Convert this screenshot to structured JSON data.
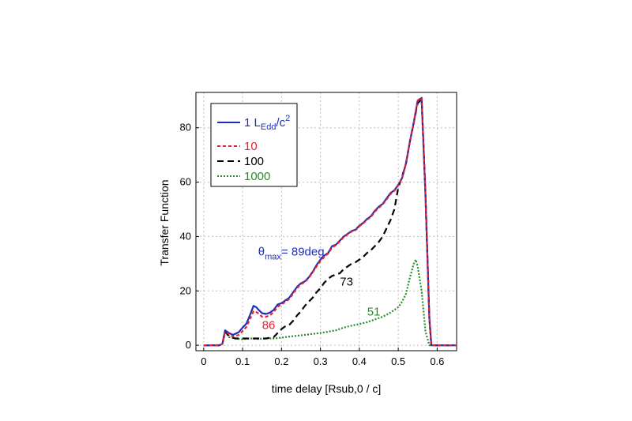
{
  "chart_data": {
    "type": "line",
    "xlabel": "time delay [Rsub,0 / c]",
    "ylabel": "Transfer Function",
    "xlim": [
      -0.02,
      0.65
    ],
    "ylim": [
      -2,
      93
    ],
    "xticks": [
      "0",
      "0.1",
      "0.2",
      "0.3",
      "0.4",
      "0.5",
      "0.6"
    ],
    "yticks": [
      "0",
      "20",
      "40",
      "60",
      "80"
    ],
    "grid": true,
    "legend_position": "top-left",
    "series": [
      {
        "name_main": "1 L",
        "name_sub": "Edd",
        "name_tail": "/c",
        "name_sup": "2",
        "color": "#1f2fb5",
        "dash": "solid",
        "x": [
          0,
          0.04,
          0.048,
          0.055,
          0.065,
          0.075,
          0.09,
          0.1,
          0.11,
          0.12,
          0.128,
          0.135,
          0.14,
          0.15,
          0.16,
          0.17,
          0.18,
          0.19,
          0.2,
          0.21,
          0.22,
          0.23,
          0.24,
          0.25,
          0.26,
          0.27,
          0.28,
          0.29,
          0.3,
          0.31,
          0.32,
          0.33,
          0.34,
          0.35,
          0.36,
          0.37,
          0.38,
          0.39,
          0.4,
          0.41,
          0.42,
          0.43,
          0.44,
          0.45,
          0.46,
          0.47,
          0.48,
          0.49,
          0.5,
          0.51,
          0.52,
          0.53,
          0.54,
          0.55,
          0.56,
          0.57,
          0.58,
          0.585,
          0.65
        ],
        "y": [
          0,
          0,
          0.5,
          5.5,
          4.5,
          3.8,
          4.8,
          6.5,
          8.0,
          11.5,
          14.5,
          14.0,
          13.2,
          11.8,
          11.5,
          12.0,
          13.0,
          15.0,
          15.5,
          16.5,
          17.5,
          19.5,
          21.5,
          22.8,
          23.5,
          25.0,
          27.0,
          29.5,
          31.5,
          33.0,
          34.0,
          36.5,
          37.0,
          38.5,
          40.0,
          41.0,
          42.0,
          42.5,
          44.0,
          45.0,
          46.5,
          47.5,
          49.5,
          51.0,
          52.0,
          54.0,
          56.0,
          57.0,
          59.0,
          61.5,
          67.0,
          75.0,
          82.0,
          90.0,
          91.0,
          55.0,
          10.0,
          0,
          0
        ]
      },
      {
        "name": "10",
        "color": "#e8202a",
        "dash": "short",
        "x": [
          0,
          0.04,
          0.048,
          0.055,
          0.065,
          0.075,
          0.09,
          0.1,
          0.11,
          0.12,
          0.128,
          0.135,
          0.14,
          0.15,
          0.16,
          0.17,
          0.18,
          0.19,
          0.2,
          0.21,
          0.22,
          0.23,
          0.24,
          0.25,
          0.26,
          0.27,
          0.28,
          0.29,
          0.3,
          0.31,
          0.32,
          0.33,
          0.34,
          0.35,
          0.36,
          0.37,
          0.38,
          0.39,
          0.4,
          0.41,
          0.42,
          0.43,
          0.44,
          0.45,
          0.46,
          0.47,
          0.48,
          0.49,
          0.5,
          0.51,
          0.52,
          0.53,
          0.54,
          0.55,
          0.56,
          0.57,
          0.58,
          0.585,
          0.65
        ],
        "y": [
          0,
          0,
          0.5,
          5.0,
          4.2,
          3.2,
          3.8,
          5.2,
          6.8,
          10.0,
          12.5,
          12.2,
          11.8,
          10.5,
          10.5,
          11.0,
          12.2,
          14.2,
          15.0,
          16.0,
          17.0,
          19.0,
          21.0,
          22.5,
          23.2,
          24.8,
          26.8,
          29.0,
          31.0,
          32.5,
          33.8,
          36.0,
          36.8,
          38.2,
          39.8,
          40.8,
          41.8,
          42.3,
          43.8,
          44.8,
          46.2,
          47.2,
          49.2,
          50.6,
          51.8,
          53.6,
          55.6,
          56.8,
          58.8,
          61.5,
          67.0,
          75.0,
          82.0,
          90.0,
          91.0,
          55.0,
          10.0,
          0,
          0
        ]
      },
      {
        "name": "100",
        "color": "#000000",
        "dash": "long",
        "x": [
          0,
          0.04,
          0.048,
          0.055,
          0.065,
          0.08,
          0.1,
          0.12,
          0.14,
          0.16,
          0.18,
          0.19,
          0.2,
          0.21,
          0.22,
          0.23,
          0.24,
          0.25,
          0.26,
          0.27,
          0.28,
          0.29,
          0.3,
          0.31,
          0.32,
          0.33,
          0.34,
          0.35,
          0.36,
          0.37,
          0.38,
          0.39,
          0.4,
          0.41,
          0.42,
          0.43,
          0.44,
          0.45,
          0.46,
          0.47,
          0.48,
          0.49,
          0.5,
          0.51,
          0.52,
          0.53,
          0.54,
          0.55,
          0.56,
          0.57,
          0.58,
          0.585,
          0.65
        ],
        "y": [
          0,
          0,
          0.5,
          5.0,
          3.5,
          2.5,
          2.5,
          2.5,
          2.5,
          2.5,
          3.0,
          4.5,
          6.0,
          7.0,
          7.5,
          9.0,
          11.0,
          12.5,
          14.5,
          16.0,
          17.5,
          19.5,
          21.0,
          23.0,
          24.5,
          25.5,
          26.0,
          26.5,
          28.0,
          29.0,
          30.0,
          30.5,
          31.5,
          32.5,
          34.0,
          35.0,
          36.5,
          38.0,
          40.0,
          43.0,
          46.0,
          50.0,
          58.0,
          62.0,
          67.0,
          75.0,
          82.0,
          89.0,
          90.5,
          55.0,
          10.0,
          0,
          0
        ]
      },
      {
        "name": "1000",
        "color": "#2a8a2a",
        "dash": "dot",
        "x": [
          0,
          0.04,
          0.048,
          0.055,
          0.065,
          0.08,
          0.1,
          0.12,
          0.14,
          0.16,
          0.18,
          0.2,
          0.22,
          0.24,
          0.26,
          0.28,
          0.3,
          0.32,
          0.34,
          0.36,
          0.38,
          0.4,
          0.42,
          0.44,
          0.46,
          0.48,
          0.5,
          0.51,
          0.52,
          0.53,
          0.54,
          0.545,
          0.55,
          0.56,
          0.57,
          0.58,
          0.65
        ],
        "y": [
          0,
          0,
          0.5,
          5.0,
          3.0,
          2.5,
          2.2,
          2.5,
          2.3,
          2.5,
          2.5,
          2.8,
          3.2,
          3.5,
          3.8,
          4.2,
          4.5,
          5.0,
          5.5,
          6.5,
          7.2,
          7.8,
          8.5,
          9.5,
          10.5,
          12.0,
          14.0,
          16.0,
          19.0,
          25.0,
          30.0,
          31.5,
          29.0,
          20.0,
          5.0,
          0,
          0
        ]
      }
    ],
    "annotations": [
      {
        "text_main": "θ",
        "text_sub": "max",
        "text_tail": "= 89deg",
        "x": 0.14,
        "y": 33,
        "color": "#1f2fb5"
      },
      {
        "text": "73",
        "x": 0.35,
        "y": 22,
        "color": "#000000"
      },
      {
        "text": "51",
        "x": 0.42,
        "y": 11,
        "color": "#2a8a2a"
      },
      {
        "text": "86",
        "x": 0.15,
        "y": 6,
        "color": "#e8202a"
      }
    ]
  }
}
